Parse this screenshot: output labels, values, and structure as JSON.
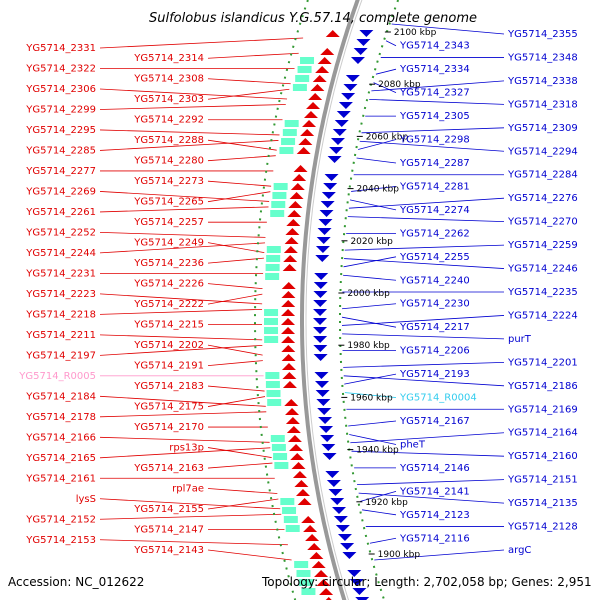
{
  "title": "Sulfolobus islandicus Y.G.57.14, complete genome",
  "footer": {
    "accession": "Accession: NC_012622",
    "topology": "Topology: circular; Length: 2,702,058 bp; Genes: 2,951"
  },
  "colors": {
    "forward": "#e00000",
    "reverse": "#0000d0",
    "rna_forward": "#ff99cc",
    "rna_reverse": "#33ccee",
    "backbone": "#999999",
    "gc_dots": "#339933"
  },
  "kbp_ticks": [
    "2100 kbp",
    "2080 kbp",
    "2060 kbp",
    "2040 kbp",
    "2020 kbp",
    "2000 kbp",
    "1980 kbp",
    "1960 kbp",
    "1940 kbp",
    "1920 kbp",
    "1900 kbp"
  ],
  "left_labels": [
    {
      "text": "YG5714_2331",
      "type": "gene"
    },
    {
      "text": "YG5714_2314",
      "type": "gene"
    },
    {
      "text": "YG5714_2322",
      "type": "gene"
    },
    {
      "text": "YG5714_2308",
      "type": "gene"
    },
    {
      "text": "YG5714_2306",
      "type": "gene"
    },
    {
      "text": "YG5714_2303",
      "type": "gene"
    },
    {
      "text": "YG5714_2299",
      "type": "gene"
    },
    {
      "text": "YG5714_2292",
      "type": "gene"
    },
    {
      "text": "YG5714_2295",
      "type": "gene"
    },
    {
      "text": "YG5714_2288",
      "type": "gene"
    },
    {
      "text": "YG5714_2285",
      "type": "gene"
    },
    {
      "text": "YG5714_2280",
      "type": "gene"
    },
    {
      "text": "YG5714_2277",
      "type": "gene"
    },
    {
      "text": "YG5714_2273",
      "type": "gene"
    },
    {
      "text": "YG5714_2269",
      "type": "gene"
    },
    {
      "text": "YG5714_2265",
      "type": "gene"
    },
    {
      "text": "YG5714_2261",
      "type": "gene"
    },
    {
      "text": "YG5714_2257",
      "type": "gene"
    },
    {
      "text": "YG5714_2252",
      "type": "gene"
    },
    {
      "text": "YG5714_2249",
      "type": "gene"
    },
    {
      "text": "YG5714_2244",
      "type": "gene"
    },
    {
      "text": "YG5714_2236",
      "type": "gene"
    },
    {
      "text": "YG5714_2231",
      "type": "gene"
    },
    {
      "text": "YG5714_2226",
      "type": "gene"
    },
    {
      "text": "YG5714_2223",
      "type": "gene"
    },
    {
      "text": "YG5714_2222",
      "type": "gene"
    },
    {
      "text": "YG5714_2218",
      "type": "gene"
    },
    {
      "text": "YG5714_2215",
      "type": "gene"
    },
    {
      "text": "YG5714_2211",
      "type": "gene"
    },
    {
      "text": "YG5714_2202",
      "type": "gene"
    },
    {
      "text": "YG5714_2197",
      "type": "gene"
    },
    {
      "text": "YG5714_2191",
      "type": "gene"
    },
    {
      "text": "YG5714_R0005",
      "type": "rna"
    },
    {
      "text": "YG5714_2183",
      "type": "gene"
    },
    {
      "text": "YG5714_2184",
      "type": "gene"
    },
    {
      "text": "YG5714_2175",
      "type": "gene"
    },
    {
      "text": "YG5714_2178",
      "type": "gene"
    },
    {
      "text": "YG5714_2170",
      "type": "gene"
    },
    {
      "text": "YG5714_2166",
      "type": "gene"
    },
    {
      "text": "rps13p",
      "type": "gene"
    },
    {
      "text": "YG5714_2165",
      "type": "gene"
    },
    {
      "text": "YG5714_2163",
      "type": "gene"
    },
    {
      "text": "YG5714_2161",
      "type": "gene"
    },
    {
      "text": "rpl7ae",
      "type": "gene"
    },
    {
      "text": "lysS",
      "type": "gene"
    },
    {
      "text": "YG5714_2155",
      "type": "gene"
    },
    {
      "text": "YG5714_2152",
      "type": "gene"
    },
    {
      "text": "YG5714_2147",
      "type": "gene"
    },
    {
      "text": "YG5714_2153",
      "type": "gene"
    },
    {
      "text": "YG5714_2143",
      "type": "gene"
    }
  ],
  "right_labels": [
    {
      "text": "YG5714_2355",
      "type": "gene"
    },
    {
      "text": "YG5714_2343",
      "type": "gene"
    },
    {
      "text": "YG5714_2348",
      "type": "gene"
    },
    {
      "text": "YG5714_2334",
      "type": "gene"
    },
    {
      "text": "YG5714_2338",
      "type": "gene"
    },
    {
      "text": "YG5714_2327",
      "type": "gene"
    },
    {
      "text": "YG5714_2318",
      "type": "gene"
    },
    {
      "text": "YG5714_2305",
      "type": "gene"
    },
    {
      "text": "YG5714_2309",
      "type": "gene"
    },
    {
      "text": "YG5714_2298",
      "type": "gene"
    },
    {
      "text": "YG5714_2294",
      "type": "gene"
    },
    {
      "text": "YG5714_2287",
      "type": "gene"
    },
    {
      "text": "YG5714_2284",
      "type": "gene"
    },
    {
      "text": "YG5714_2281",
      "type": "gene"
    },
    {
      "text": "YG5714_2276",
      "type": "gene"
    },
    {
      "text": "YG5714_2274",
      "type": "gene"
    },
    {
      "text": "YG5714_2270",
      "type": "gene"
    },
    {
      "text": "YG5714_2262",
      "type": "gene"
    },
    {
      "text": "YG5714_2259",
      "type": "gene"
    },
    {
      "text": "YG5714_2255",
      "type": "gene"
    },
    {
      "text": "YG5714_2246",
      "type": "gene"
    },
    {
      "text": "YG5714_2240",
      "type": "gene"
    },
    {
      "text": "YG5714_2235",
      "type": "gene"
    },
    {
      "text": "YG5714_2230",
      "type": "gene"
    },
    {
      "text": "YG5714_2224",
      "type": "gene"
    },
    {
      "text": "YG5714_2217",
      "type": "gene"
    },
    {
      "text": "purT",
      "type": "gene"
    },
    {
      "text": "YG5714_2206",
      "type": "gene"
    },
    {
      "text": "YG5714_2201",
      "type": "gene"
    },
    {
      "text": "YG5714_2193",
      "type": "gene"
    },
    {
      "text": "YG5714_2186",
      "type": "gene"
    },
    {
      "text": "YG5714_R0004",
      "type": "rna"
    },
    {
      "text": "YG5714_2169",
      "type": "gene"
    },
    {
      "text": "YG5714_2167",
      "type": "gene"
    },
    {
      "text": "YG5714_2164",
      "type": "gene"
    },
    {
      "text": "pheT",
      "type": "gene"
    },
    {
      "text": "YG5714_2160",
      "type": "gene"
    },
    {
      "text": "YG5714_2146",
      "type": "gene"
    },
    {
      "text": "YG5714_2151",
      "type": "gene"
    },
    {
      "text": "YG5714_2141",
      "type": "gene"
    },
    {
      "text": "YG5714_2135",
      "type": "gene"
    },
    {
      "text": "YG5714_2123",
      "type": "gene"
    },
    {
      "text": "YG5714_2128",
      "type": "gene"
    },
    {
      "text": "YG5714_2116",
      "type": "gene"
    },
    {
      "text": "argC",
      "type": "gene"
    }
  ]
}
